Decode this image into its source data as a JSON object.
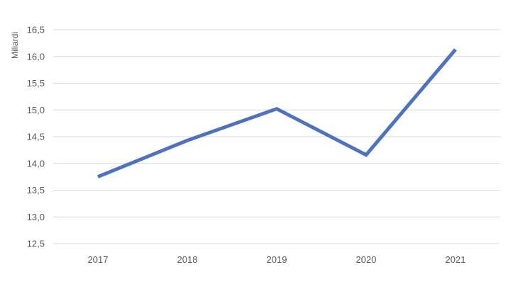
{
  "chart_data": {
    "type": "line",
    "title": "",
    "xlabel": "",
    "ylabel": "Miliardi",
    "categories": [
      "2017",
      "2018",
      "2019",
      "2020",
      "2021"
    ],
    "series": [
      {
        "values": [
          13.75,
          14.43,
          15.02,
          14.16,
          16.13
        ],
        "color": "#4f72be"
      }
    ],
    "ylim": [
      12.5,
      16.5
    ],
    "yticks": [
      12.5,
      13.0,
      13.5,
      14.0,
      14.5,
      15.0,
      15.5,
      16.0,
      16.5
    ],
    "ytick_labels": [
      "12,5",
      "13,0",
      "13,5",
      "14,0",
      "14,5",
      "15,0",
      "15,5",
      "16,0",
      "16,5"
    ],
    "grid": true,
    "legend": "none"
  }
}
